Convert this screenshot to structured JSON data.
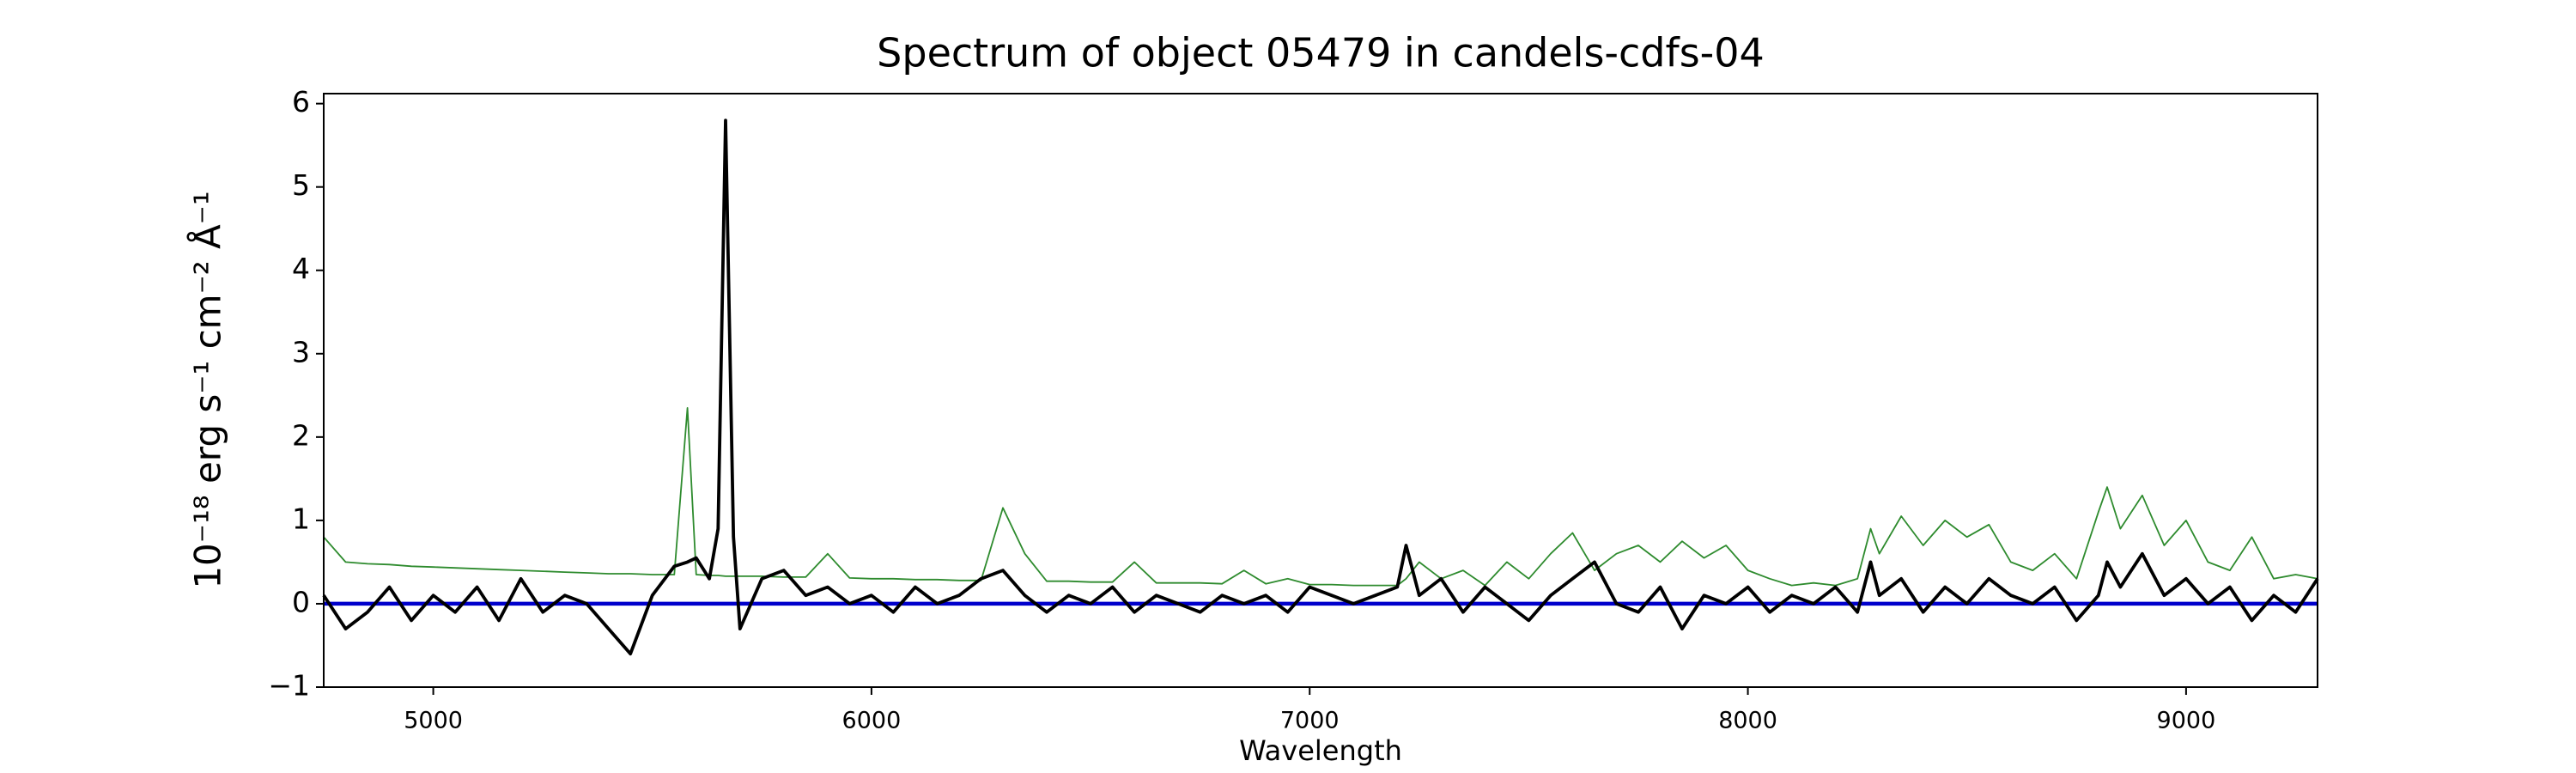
{
  "chart_data": {
    "type": "line",
    "title": "Spectrum of object 05479 in candels-cdfs-04",
    "x_label": "Wavelength",
    "y_label": "10⁻¹⁸ erg s⁻¹ cm⁻² Å⁻¹",
    "x": [
      4750,
      4800,
      4850,
      4900,
      4950,
      5000,
      5050,
      5100,
      5150,
      5200,
      5250,
      5300,
      5350,
      5400,
      5450,
      5500,
      5550,
      5580,
      5600,
      5630,
      5650,
      5667,
      5685,
      5700,
      5750,
      5800,
      5850,
      5900,
      5950,
      6000,
      6050,
      6100,
      6150,
      6200,
      6250,
      6300,
      6350,
      6400,
      6450,
      6500,
      6550,
      6600,
      6650,
      6700,
      6750,
      6800,
      6850,
      6900,
      6950,
      7000,
      7050,
      7100,
      7150,
      7200,
      7220,
      7250,
      7300,
      7350,
      7400,
      7450,
      7500,
      7550,
      7600,
      7650,
      7700,
      7750,
      7800,
      7850,
      7900,
      7950,
      8000,
      8050,
      8100,
      8150,
      8200,
      8250,
      8280,
      8300,
      8350,
      8400,
      8450,
      8500,
      8550,
      8600,
      8650,
      8700,
      8750,
      8800,
      8820,
      8850,
      8900,
      8950,
      9000,
      9050,
      9100,
      9150,
      9200,
      9250,
      9300
    ],
    "series": [
      {
        "color": "#2e8b2e",
        "values": [
          0.8,
          0.5,
          0.48,
          0.47,
          0.45,
          0.44,
          0.43,
          0.42,
          0.41,
          0.4,
          0.39,
          0.38,
          0.37,
          0.36,
          0.36,
          0.35,
          0.35,
          2.35,
          0.35,
          0.34,
          0.34,
          0.33,
          0.33,
          0.33,
          0.33,
          0.32,
          0.32,
          0.6,
          0.31,
          0.3,
          0.3,
          0.29,
          0.29,
          0.28,
          0.28,
          1.15,
          0.6,
          0.27,
          0.27,
          0.26,
          0.26,
          0.5,
          0.25,
          0.25,
          0.25,
          0.24,
          0.4,
          0.24,
          0.3,
          0.23,
          0.23,
          0.22,
          0.22,
          0.22,
          0.3,
          0.5,
          0.3,
          0.4,
          0.22,
          0.5,
          0.3,
          0.6,
          0.85,
          0.4,
          0.6,
          0.7,
          0.5,
          0.75,
          0.55,
          0.7,
          0.4,
          0.3,
          0.22,
          0.25,
          0.22,
          0.3,
          0.9,
          0.6,
          1.05,
          0.7,
          1.0,
          0.8,
          0.95,
          0.5,
          0.4,
          0.6,
          0.3,
          1.1,
          1.4,
          0.9,
          1.3,
          0.7,
          1.0,
          0.5,
          0.4,
          0.8,
          0.3,
          0.35,
          0.3
        ]
      },
      {
        "color": "#0000cc",
        "values": [
          0,
          0,
          0,
          0,
          0,
          0,
          0,
          0,
          0,
          0,
          0,
          0,
          0,
          0,
          0,
          0,
          0,
          0,
          0,
          0,
          0,
          0,
          0,
          0,
          0,
          0,
          0,
          0,
          0,
          0,
          0,
          0,
          0,
          0,
          0,
          0,
          0,
          0,
          0,
          0,
          0,
          0,
          0,
          0,
          0,
          0,
          0,
          0,
          0,
          0,
          0,
          0,
          0,
          0,
          0,
          0,
          0,
          0,
          0,
          0,
          0,
          0,
          0,
          0,
          0,
          0,
          0,
          0,
          0,
          0,
          0,
          0,
          0,
          0,
          0,
          0,
          0,
          0,
          0,
          0,
          0,
          0,
          0,
          0,
          0,
          0,
          0,
          0,
          0,
          0,
          0,
          0,
          0,
          0,
          0,
          0,
          0,
          0,
          0
        ]
      },
      {
        "color": "#000000",
        "values": [
          0.1,
          -0.3,
          -0.1,
          0.2,
          -0.2,
          0.1,
          -0.1,
          0.2,
          -0.2,
          0.3,
          -0.1,
          0.1,
          0.0,
          -0.3,
          -0.6,
          0.1,
          0.45,
          0.5,
          0.55,
          0.3,
          0.9,
          5.8,
          0.8,
          -0.3,
          0.3,
          0.4,
          0.1,
          0.2,
          0.0,
          0.1,
          -0.1,
          0.2,
          0.0,
          0.1,
          0.3,
          0.4,
          0.1,
          -0.1,
          0.1,
          0.0,
          0.2,
          -0.1,
          0.1,
          0.0,
          -0.1,
          0.1,
          0.0,
          0.1,
          -0.1,
          0.2,
          0.1,
          0.0,
          0.1,
          0.2,
          0.7,
          0.1,
          0.3,
          -0.1,
          0.2,
          0.0,
          -0.2,
          0.1,
          0.3,
          0.5,
          0.0,
          -0.1,
          0.2,
          -0.3,
          0.1,
          0.0,
          0.2,
          -0.1,
          0.1,
          0.0,
          0.2,
          -0.1,
          0.5,
          0.1,
          0.3,
          -0.1,
          0.2,
          0.0,
          0.3,
          0.1,
          0.0,
          0.2,
          -0.2,
          0.1,
          0.5,
          0.2,
          0.6,
          0.1,
          0.3,
          0.0,
          0.2,
          -0.2,
          0.1,
          -0.1,
          0.3
        ]
      }
    ],
    "xlim": [
      4750,
      9300
    ],
    "ylim": [
      -1,
      6.12
    ],
    "xticks": [
      5000,
      6000,
      7000,
      8000,
      9000
    ],
    "yticks": [
      {
        "value": -1,
        "label": "−1"
      },
      0,
      1,
      2,
      3,
      4,
      5,
      6
    ]
  }
}
